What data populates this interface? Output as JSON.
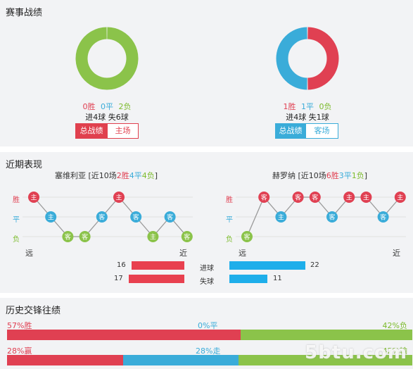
{
  "record": {
    "title": "赛事战绩",
    "left": {
      "win": "0胜",
      "draw": "0平",
      "loss": "2负",
      "goals": "进4球 失6球",
      "tab_active": "总战绩",
      "tab_other": "主场",
      "donut": {
        "win": 0,
        "draw": 0,
        "loss": 2
      },
      "colors": {
        "win": "#e04052",
        "draw": "#3aacd9",
        "loss": "#8bc34a"
      }
    },
    "right": {
      "win": "1胜",
      "draw": "1平",
      "loss": "0负",
      "goals": "进4球 失1球",
      "tab_active": "总战绩",
      "tab_other": "客场",
      "donut": {
        "win": 1,
        "draw": 1,
        "loss": 0
      },
      "colors": {
        "win": "#e04052",
        "draw": "#3aacd9",
        "loss": "#8bc34a"
      }
    }
  },
  "recent": {
    "title": "近期表现",
    "y_labels": {
      "win": "胜",
      "draw": "平",
      "loss": "负"
    },
    "far": "远",
    "near": "近",
    "left": {
      "team": "塞维利亚",
      "summary_pre": " [近10场",
      "w": "2胜",
      "d": "4平",
      "l": "4负",
      "summary_post": "]",
      "games": [
        {
          "result": "W",
          "venue": "主"
        },
        {
          "result": "D",
          "venue": "主"
        },
        {
          "result": "L",
          "venue": "客"
        },
        {
          "result": "L",
          "venue": "客"
        },
        {
          "result": "D",
          "venue": "客"
        },
        {
          "result": "W",
          "venue": "主"
        },
        {
          "result": "D",
          "venue": "客"
        },
        {
          "result": "L",
          "venue": "主"
        },
        {
          "result": "D",
          "venue": "客"
        },
        {
          "result": "L",
          "venue": "客"
        }
      ]
    },
    "right": {
      "team": "赫罗纳",
      "summary_pre": " [近10场",
      "w": "6胜",
      "d": "3平",
      "l": "1负",
      "summary_post": "]",
      "games": [
        {
          "result": "L",
          "venue": "客"
        },
        {
          "result": "W",
          "venue": "客"
        },
        {
          "result": "D",
          "venue": "主"
        },
        {
          "result": "W",
          "venue": "客"
        },
        {
          "result": "W",
          "venue": "客"
        },
        {
          "result": "D",
          "venue": "客"
        },
        {
          "result": "W",
          "venue": "主"
        },
        {
          "result": "W",
          "venue": "主"
        },
        {
          "result": "D",
          "venue": "客"
        },
        {
          "result": "W",
          "venue": "主"
        }
      ]
    },
    "stats": [
      {
        "label": "进球",
        "left": 16,
        "right": 22
      },
      {
        "label": "失球",
        "left": 17,
        "right": 11
      }
    ],
    "colors": {
      "left_bar": "#e8404f",
      "right_bar": "#1eaeea",
      "W": "#e04052",
      "D": "#3aacd9",
      "L": "#8bc34a",
      "line": "#9a9a9a"
    }
  },
  "history": {
    "title": "历史交锋往绩",
    "row1": {
      "left": "57%胜",
      "mid": "0%平",
      "right": "42%负",
      "values": [
        57,
        0,
        42
      ]
    },
    "row2": {
      "left": "28%赢",
      "mid": "28%走",
      "right": "42%输",
      "values": [
        28,
        28,
        42
      ]
    },
    "colors": {
      "red": "#e04052",
      "blue": "#3aacd9",
      "green": "#8bc34a"
    }
  },
  "watermark": "5btu.com"
}
